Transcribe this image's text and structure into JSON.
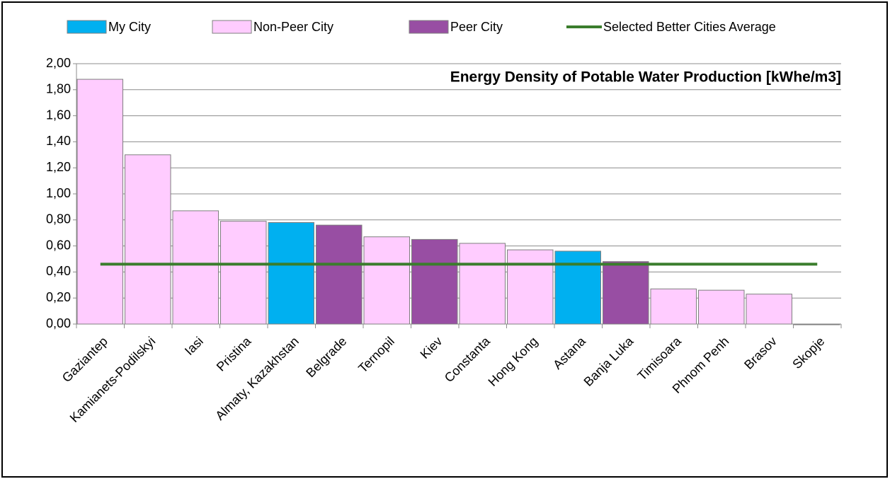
{
  "chart_data": {
    "type": "bar",
    "title": "Energy Density of Potable Water Production  [kWhe/m3]",
    "categories": [
      "Gaziantep",
      "Kamianets-Podilskyi",
      "Iasi",
      "Pristina",
      "Almaty, Kazakhstan",
      "Belgrade",
      "Ternopil",
      "Kiev",
      "Constanta",
      "Hong Kong",
      "Astana",
      "Banja Luka",
      "Timisoara",
      "Phnom Penh",
      "Brasov",
      "Skopje"
    ],
    "series": [
      {
        "name": "My City",
        "color": "#00b0f0",
        "type": "bar",
        "values": [
          null,
          null,
          null,
          null,
          0.78,
          null,
          null,
          null,
          null,
          null,
          0.56,
          null,
          null,
          null,
          null,
          null
        ]
      },
      {
        "name": "Non-Peer City",
        "color": "#ffccff",
        "type": "bar",
        "values": [
          1.88,
          1.3,
          0.87,
          0.79,
          null,
          null,
          0.67,
          null,
          0.62,
          0.57,
          null,
          null,
          0.27,
          0.26,
          0.23,
          0.0
        ]
      },
      {
        "name": "Peer City",
        "color": "#984ea3",
        "type": "bar",
        "values": [
          null,
          null,
          null,
          null,
          null,
          0.76,
          null,
          0.65,
          null,
          null,
          null,
          0.48,
          null,
          null,
          null,
          null
        ]
      },
      {
        "name": "Selected Better Cities Average",
        "color": "#3a7d2c",
        "type": "line",
        "values": [
          0.46,
          0.46,
          0.46,
          0.46,
          0.46,
          0.46,
          0.46,
          0.46,
          0.46,
          0.46,
          0.46,
          0.46,
          0.46,
          0.46,
          0.46,
          0.46
        ]
      }
    ],
    "ylim": [
      0,
      2
    ],
    "yticks": [
      {
        "value": 0,
        "label": "0,00"
      },
      {
        "value": 0.2,
        "label": "0,20"
      },
      {
        "value": 0.4,
        "label": "0,40"
      },
      {
        "value": 0.6,
        "label": "0,60"
      },
      {
        "value": 0.8,
        "label": "0,80"
      },
      {
        "value": 1,
        "label": "1,00"
      },
      {
        "value": 1.2,
        "label": "1,20"
      },
      {
        "value": 1.4,
        "label": "1,40"
      },
      {
        "value": 1.6,
        "label": "1,60"
      },
      {
        "value": 1.8,
        "label": "1,80"
      },
      {
        "value": 2,
        "label": "2,00"
      }
    ],
    "grid": true,
    "legend": "top"
  }
}
